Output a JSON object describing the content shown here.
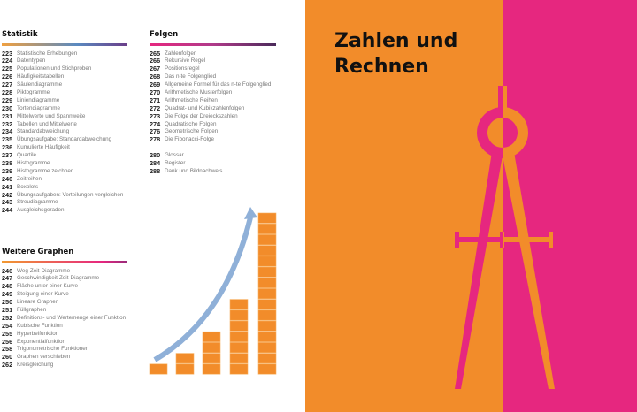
{
  "statistik": {
    "heading": "Statistik",
    "items": [
      [
        "223",
        "Statistische Erhebungen"
      ],
      [
        "224",
        "Datentypen"
      ],
      [
        "225",
        "Populationen und Stichproben"
      ],
      [
        "226",
        "Häufigkeitstabellen"
      ],
      [
        "227",
        "Säulendiagramme"
      ],
      [
        "228",
        "Piktogramme"
      ],
      [
        "229",
        "Liniendiagramme"
      ],
      [
        "230",
        "Tortendiagramme"
      ],
      [
        "231",
        "Mittelwerte und Spannweite"
      ],
      [
        "232",
        "Tabellen und Mittelwerte"
      ],
      [
        "234",
        "Standardabweichung"
      ],
      [
        "235",
        "Übungsaufgabe: Standardabweichung"
      ],
      [
        "236",
        "Kumulierte Häufigkeit"
      ],
      [
        "237",
        "Quartile"
      ],
      [
        "238",
        "Histogramme"
      ],
      [
        "239",
        "Histogramme zeichnen"
      ],
      [
        "240",
        "Zeitreihen"
      ],
      [
        "241",
        "Boxplots"
      ],
      [
        "242",
        "Übungsaufgaben: Verteilungen vergleichen"
      ],
      [
        "243",
        "Streudiagramme"
      ],
      [
        "244",
        "Ausgleichsgeraden"
      ]
    ]
  },
  "graphen": {
    "heading": "Weitere Graphen",
    "items": [
      [
        "246",
        "Weg-Zeit-Diagramme"
      ],
      [
        "247",
        "Geschwindigkeit-Zeit-Diagramme"
      ],
      [
        "248",
        "Fläche unter einer Kurve"
      ],
      [
        "249",
        "Steigung einer Kurve"
      ],
      [
        "250",
        "Lineare Graphen"
      ],
      [
        "251",
        "Füllgraphen"
      ],
      [
        "252",
        "Definitions- und Wertemenge einer Funktion"
      ],
      [
        "254",
        "Kubische Funktion"
      ],
      [
        "255",
        "Hyperbelfunktion"
      ],
      [
        "256",
        "Exponentialfunktion"
      ],
      [
        "258",
        "Trigonometrische Funktionen"
      ],
      [
        "260",
        "Graphen verschieben"
      ],
      [
        "262",
        "Kreisgleichung"
      ]
    ]
  },
  "folgen": {
    "heading": "Folgen",
    "items": [
      [
        "265",
        "Zahlenfolgen"
      ],
      [
        "266",
        "Rekursive Regel"
      ],
      [
        "267",
        "Positionsregel"
      ],
      [
        "268",
        "Das n-te Folgenglied"
      ],
      [
        "269",
        "Allgemeine Formel für das n-te Folgenglied"
      ],
      [
        "270",
        "Arithmetische Musterfolgen"
      ],
      [
        "271",
        "Arithmetische Reihen"
      ],
      [
        "272",
        "Quadrat- und Kubikzahlenfolgen"
      ],
      [
        "273",
        "Die Folge der Dreieckszahlen"
      ],
      [
        "274",
        "Quadratische Folgen"
      ],
      [
        "276",
        "Geometrische Folgen"
      ],
      [
        "278",
        "Die Fibonacci-Folge"
      ]
    ]
  },
  "anhang": {
    "items": [
      [
        "280",
        "Glossar"
      ],
      [
        "284",
        "Register"
      ],
      [
        "288",
        "Dank und Bildnachweis"
      ]
    ]
  },
  "chapter": {
    "title_line1": "Zahlen und",
    "title_line2": "Rechnen"
  },
  "colors": {
    "orange": "#f28c2a",
    "pink": "#e6277f",
    "arrow": "#8fb0d8"
  },
  "illustration": {
    "column_cubes": [
      1,
      2,
      4,
      7,
      15
    ]
  }
}
